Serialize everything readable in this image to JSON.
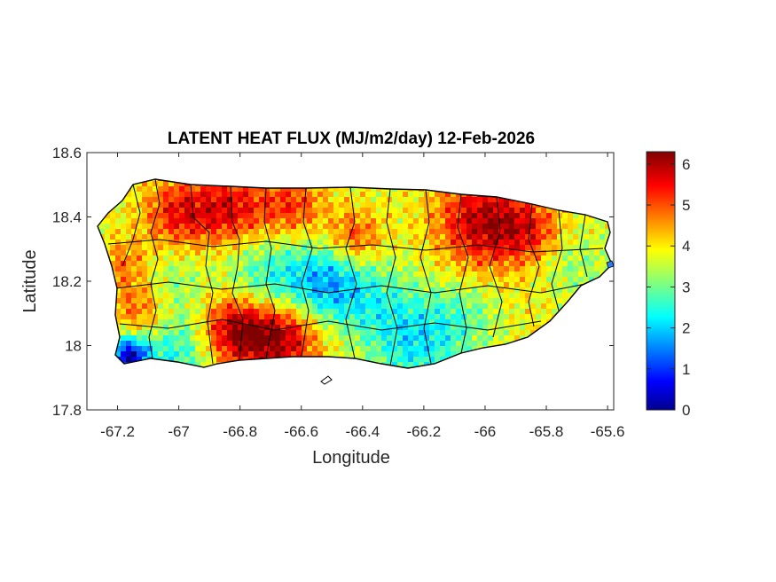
{
  "chart_data": {
    "type": "heatmap",
    "title": "LATENT HEAT FLUX (MJ/m2/day) 12-Feb-2026",
    "xlabel": "Longitude",
    "ylabel": "Latitude",
    "xlim": [
      -67.3,
      -65.58
    ],
    "ylim": [
      17.8,
      18.6
    ],
    "xticks": [
      -67.2,
      -67,
      -66.8,
      -66.6,
      -66.4,
      -66.2,
      -66,
      -65.8,
      -65.6
    ],
    "xtick_labels": [
      "-67.2",
      "-67",
      "-66.8",
      "-66.6",
      "-66.4",
      "-66.2",
      "-66",
      "-65.8",
      "-65.6"
    ],
    "yticks": [
      17.8,
      18,
      18.2,
      18.4,
      18.6
    ],
    "ytick_labels": [
      "17.8",
      "18",
      "18.2",
      "18.4",
      "18.6"
    ],
    "colorbar": {
      "colormap": "jet",
      "limits": [
        0,
        6.3
      ],
      "ticks": [
        0,
        1,
        2,
        3,
        4,
        5,
        6
      ],
      "tick_labels": [
        "0",
        "1",
        "2",
        "3",
        "4",
        "5",
        "6"
      ]
    },
    "grid": false,
    "region": "Puerto Rico"
  },
  "colors": {
    "outline": "#000000",
    "axes_box": "#262626",
    "background": "#ffffff"
  }
}
